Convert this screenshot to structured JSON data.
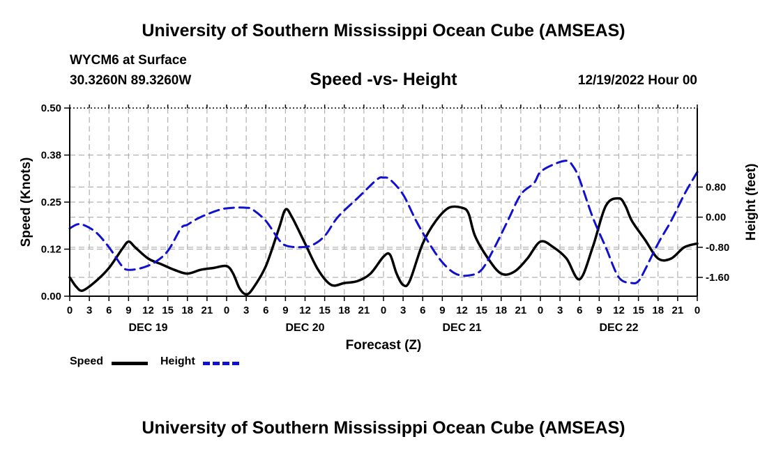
{
  "page": {
    "top_title": "University of Southern Mississippi Ocean Cube (AMSEAS)",
    "bottom_title": "University of Southern Mississippi Ocean Cube (AMSEAS)",
    "station": "WYCM6 at Surface",
    "coords": "30.3260N  89.3260W",
    "date": "12/19/2022 Hour 00"
  },
  "legend": {
    "speed": "Speed",
    "height": "Height"
  },
  "colors": {
    "speed": "#000000",
    "height": "#1010d0",
    "grid": "#b0b0b0"
  },
  "chart_data": {
    "type": "line",
    "title": "Speed -vs- Height",
    "xlabel": "Forecast (Z)",
    "ylabel": "Speed (Knots)",
    "y2label": "Height (feet)",
    "x_range": [
      0,
      96
    ],
    "ylim": [
      0,
      0.5
    ],
    "y2lim": [
      -2.1,
      2.9
    ],
    "x_ticks": [
      0,
      3,
      6,
      9,
      12,
      15,
      18,
      21,
      24,
      27,
      30,
      33,
      36,
      39,
      42,
      45,
      48,
      51,
      54,
      57,
      60,
      63,
      66,
      69,
      72,
      75,
      78,
      81,
      84,
      87,
      90,
      93,
      96
    ],
    "x_tick_labels": [
      "0",
      "3",
      "6",
      "9",
      "12",
      "15",
      "18",
      "21",
      "0",
      "3",
      "6",
      "9",
      "12",
      "15",
      "18",
      "21",
      "0",
      "3",
      "6",
      "9",
      "12",
      "15",
      "18",
      "21",
      "0",
      "3",
      "6",
      "9",
      "12",
      "15",
      "18",
      "21",
      "0"
    ],
    "day_labels": [
      {
        "x": 12,
        "label": "DEC 19"
      },
      {
        "x": 36,
        "label": "DEC 20"
      },
      {
        "x": 60,
        "label": "DEC 21"
      },
      {
        "x": 84,
        "label": "DEC 22"
      }
    ],
    "y_ticks": [
      0,
      0.125,
      0.25,
      0.375,
      0.5
    ],
    "y_tick_labels": [
      "0.00",
      "0.12",
      "0.25",
      "0.38",
      "0.50"
    ],
    "y2_ticks": [
      -1.6,
      -0.8,
      0.0,
      0.8
    ],
    "y2_tick_labels": [
      "-1.60",
      "-0.80",
      "0.00",
      "0.80"
    ],
    "series": [
      {
        "name": "Speed",
        "axis": "left",
        "x": [
          0,
          1,
          2,
          4,
          6,
          8,
          9,
          10,
          12,
          14,
          16,
          18,
          20,
          22,
          24,
          25,
          26,
          27,
          28,
          30,
          32,
          33,
          34,
          36,
          38,
          40,
          42,
          44,
          46,
          48,
          49,
          50,
          51,
          52,
          54,
          56,
          58,
          60,
          61,
          62,
          64,
          66,
          68,
          70,
          72,
          74,
          76,
          78,
          80,
          82,
          84,
          85,
          86,
          88,
          90,
          92,
          94,
          96
        ],
        "y": [
          0.05,
          0.025,
          0.015,
          0.04,
          0.075,
          0.125,
          0.145,
          0.13,
          0.1,
          0.085,
          0.07,
          0.06,
          0.07,
          0.075,
          0.08,
          0.06,
          0.02,
          0.005,
          0.02,
          0.08,
          0.18,
          0.23,
          0.21,
          0.14,
          0.07,
          0.03,
          0.035,
          0.04,
          0.06,
          0.105,
          0.11,
          0.06,
          0.03,
          0.04,
          0.14,
          0.2,
          0.235,
          0.235,
          0.22,
          0.16,
          0.1,
          0.06,
          0.065,
          0.1,
          0.145,
          0.13,
          0.1,
          0.045,
          0.13,
          0.24,
          0.26,
          0.24,
          0.2,
          0.15,
          0.1,
          0.1,
          0.13,
          0.14
        ]
      },
      {
        "name": "Height",
        "axis": "right",
        "x": [
          0,
          1,
          2,
          4,
          6,
          8,
          9,
          11,
          13,
          15,
          17,
          18,
          20,
          23,
          25,
          27,
          28,
          30,
          32,
          33,
          35,
          37,
          39,
          41,
          44,
          47,
          48,
          49,
          51,
          53,
          55,
          57,
          59,
          61,
          63,
          65,
          67,
          69,
          71,
          72,
          74,
          76,
          77,
          78,
          80,
          82,
          84,
          86,
          87,
          88,
          90,
          92,
          94,
          96
        ],
        "y": [
          -0.3,
          -0.2,
          -0.2,
          -0.4,
          -0.8,
          -1.3,
          -1.4,
          -1.35,
          -1.2,
          -0.9,
          -0.3,
          -0.2,
          0.0,
          0.2,
          0.25,
          0.25,
          0.2,
          -0.1,
          -0.6,
          -0.75,
          -0.8,
          -0.75,
          -0.5,
          0.0,
          0.5,
          1.0,
          1.05,
          1.0,
          0.6,
          -0.1,
          -0.7,
          -1.2,
          -1.5,
          -1.55,
          -1.4,
          -0.8,
          -0.1,
          0.6,
          0.9,
          1.2,
          1.4,
          1.5,
          1.35,
          1.0,
          0.0,
          -0.8,
          -1.6,
          -1.75,
          -1.7,
          -1.4,
          -0.7,
          -0.1,
          0.6,
          1.2
        ]
      }
    ]
  }
}
